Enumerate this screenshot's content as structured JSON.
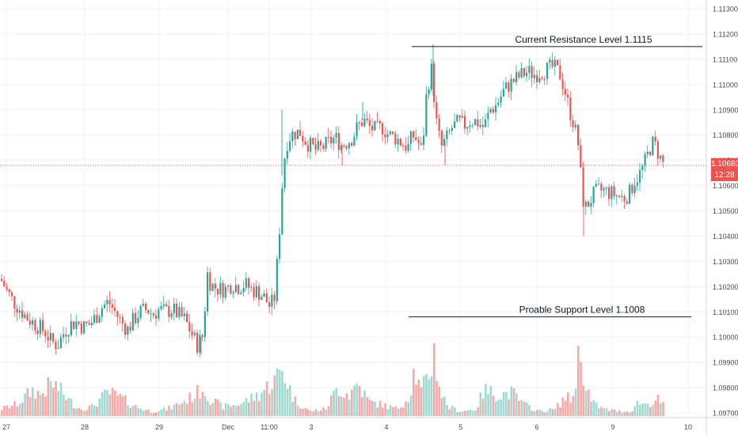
{
  "chart_data": {
    "type": "candlestick",
    "instrument_hint": "",
    "y_axis": {
      "ylim": [
        1.0966,
        1.1133
      ],
      "ticks": [
        "1.11300",
        "1.11200",
        "1.11100",
        "1.11000",
        "1.10900",
        "1.10800",
        "1.10700",
        "1.10600",
        "1.10500",
        "1.10400",
        "1.10300",
        "1.10200",
        "1.10100",
        "1.10000",
        "1.09900",
        "1.09800",
        "1.09700"
      ]
    },
    "x_axis": {
      "ticks": [
        "27",
        "28",
        "29",
        "Dec",
        "11:00",
        "3",
        "4",
        "5",
        "6",
        "9",
        "10"
      ]
    },
    "current_price": {
      "value": "1.10680",
      "time_left": "12:28"
    },
    "annotations": [
      {
        "label": "Current Resistance Level 1.1115",
        "level": 1.1115
      },
      {
        "label": "Proable Support Level 1.1008",
        "level": 1.1008
      }
    ],
    "price_path": [
      [
        0,
        1.1023
      ],
      [
        8,
        1.1018
      ],
      [
        16,
        1.1014
      ],
      [
        24,
        1.1011
      ],
      [
        32,
        1.1008
      ],
      [
        40,
        1.1006
      ],
      [
        48,
        1.1004
      ],
      [
        56,
        1.1002
      ],
      [
        64,
        1.0998
      ],
      [
        72,
        1.0997
      ],
      [
        80,
        1.1002
      ],
      [
        88,
        1.1005
      ],
      [
        96,
        1.1006
      ],
      [
        104,
        1.1004
      ],
      [
        112,
        1.1005
      ],
      [
        120,
        1.1008
      ],
      [
        128,
        1.1012
      ],
      [
        136,
        1.1014
      ],
      [
        144,
        1.101
      ],
      [
        152,
        1.1006
      ],
      [
        160,
        1.1003
      ],
      [
        168,
        1.1007
      ],
      [
        176,
        1.101
      ],
      [
        184,
        1.1011
      ],
      [
        192,
        1.1009
      ],
      [
        200,
        1.1011
      ],
      [
        208,
        1.101
      ],
      [
        216,
        1.1011
      ],
      [
        224,
        1.1009
      ],
      [
        232,
        1.1007
      ],
      [
        240,
        1.1002
      ],
      [
        248,
        1.0997
      ],
      [
        256,
        1.1001
      ],
      [
        260,
        1.1026
      ],
      [
        264,
        1.1022
      ],
      [
        268,
        1.102
      ],
      [
        276,
        1.1019
      ],
      [
        284,
        1.1019
      ],
      [
        292,
        1.1021
      ],
      [
        300,
        1.102
      ],
      [
        308,
        1.1021
      ],
      [
        316,
        1.1019
      ],
      [
        324,
        1.1018
      ],
      [
        332,
        1.1016
      ],
      [
        340,
        1.1012
      ],
      [
        346,
        1.1016
      ],
      [
        352,
        1.1043
      ],
      [
        356,
        1.1064
      ],
      [
        360,
        1.1076
      ],
      [
        366,
        1.108
      ],
      [
        372,
        1.1081
      ],
      [
        378,
        1.1081
      ],
      [
        384,
        1.1078
      ],
      [
        390,
        1.1076
      ],
      [
        398,
        1.1074
      ],
      [
        406,
        1.1075
      ],
      [
        414,
        1.1077
      ],
      [
        422,
        1.1079
      ],
      [
        430,
        1.1076
      ],
      [
        436,
        1.1077
      ],
      [
        444,
        1.1079
      ],
      [
        450,
        1.1083
      ],
      [
        458,
        1.1086
      ],
      [
        466,
        1.1083
      ],
      [
        474,
        1.1082
      ],
      [
        482,
        1.1083
      ],
      [
        490,
        1.108
      ],
      [
        498,
        1.1079
      ],
      [
        506,
        1.1077
      ],
      [
        514,
        1.1075
      ],
      [
        520,
        1.108
      ],
      [
        526,
        1.1078
      ],
      [
        532,
        1.1073
      ],
      [
        538,
        1.1098
      ],
      [
        544,
        1.1106
      ],
      [
        550,
        1.1085
      ],
      [
        556,
        1.1075
      ],
      [
        562,
        1.1078
      ],
      [
        570,
        1.1083
      ],
      [
        578,
        1.1085
      ],
      [
        586,
        1.1084
      ],
      [
        594,
        1.1086
      ],
      [
        602,
        1.1085
      ],
      [
        610,
        1.1083
      ],
      [
        618,
        1.109
      ],
      [
        626,
        1.1092
      ],
      [
        634,
        1.1097
      ],
      [
        642,
        1.11
      ],
      [
        650,
        1.1102
      ],
      [
        658,
        1.1104
      ],
      [
        666,
        1.1105
      ],
      [
        674,
        1.1104
      ],
      [
        682,
        1.1105
      ],
      [
        690,
        1.1106
      ],
      [
        698,
        1.1107
      ],
      [
        706,
        1.1104
      ],
      [
        712,
        1.1098
      ],
      [
        718,
        1.109
      ],
      [
        724,
        1.1084
      ],
      [
        730,
        1.1075
      ],
      [
        734,
        1.1056
      ],
      [
        738,
        1.1051
      ],
      [
        744,
        1.1054
      ],
      [
        750,
        1.1057
      ],
      [
        756,
        1.1058
      ],
      [
        762,
        1.1058
      ],
      [
        770,
        1.1057
      ],
      [
        778,
        1.1056
      ],
      [
        786,
        1.1055
      ],
      [
        794,
        1.1057
      ],
      [
        800,
        1.1062
      ],
      [
        806,
        1.1064
      ],
      [
        812,
        1.1068
      ],
      [
        818,
        1.1073
      ],
      [
        822,
        1.1077
      ],
      [
        826,
        1.1076
      ],
      [
        830,
        1.1073
      ],
      [
        834,
        1.107
      ],
      [
        838,
        1.1068
      ]
    ],
    "wick_extremes": [
      [
        547,
        1.1116
      ],
      [
        737,
        1.104
      ],
      [
        356,
        1.109
      ],
      [
        458,
        1.1093
      ],
      [
        432,
        1.1068
      ],
      [
        562,
        1.1068
      ],
      [
        254,
        1.0993
      ]
    ],
    "volume_profile": [
      [
        0,
        0.15
      ],
      [
        20,
        0.25
      ],
      [
        40,
        0.55
      ],
      [
        50,
        0.45
      ],
      [
        64,
        0.7
      ],
      [
        72,
        0.6
      ],
      [
        85,
        0.35
      ],
      [
        100,
        0.15
      ],
      [
        115,
        0.2
      ],
      [
        135,
        0.5
      ],
      [
        150,
        0.4
      ],
      [
        170,
        0.2
      ],
      [
        190,
        0.1
      ],
      [
        210,
        0.15
      ],
      [
        230,
        0.3
      ],
      [
        245,
        0.45
      ],
      [
        255,
        0.6
      ],
      [
        265,
        0.35
      ],
      [
        280,
        0.2
      ],
      [
        300,
        0.25
      ],
      [
        325,
        0.45
      ],
      [
        345,
        0.75
      ],
      [
        355,
        1.0
      ],
      [
        370,
        0.35
      ],
      [
        390,
        0.1
      ],
      [
        410,
        0.15
      ],
      [
        425,
        0.6
      ],
      [
        440,
        0.45
      ],
      [
        450,
        0.7
      ],
      [
        465,
        0.3
      ],
      [
        480,
        0.25
      ],
      [
        500,
        0.15
      ],
      [
        515,
        0.4
      ],
      [
        522,
        1.0
      ],
      [
        530,
        0.5
      ],
      [
        540,
        0.85
      ],
      [
        547,
        1.35
      ],
      [
        555,
        0.5
      ],
      [
        565,
        0.2
      ],
      [
        580,
        0.1
      ],
      [
        600,
        0.15
      ],
      [
        610,
        0.55
      ],
      [
        630,
        0.45
      ],
      [
        645,
        0.5
      ],
      [
        660,
        0.25
      ],
      [
        680,
        0.1
      ],
      [
        700,
        0.15
      ],
      [
        712,
        0.4
      ],
      [
        722,
        0.35
      ],
      [
        730,
        1.35
      ],
      [
        736,
        0.9
      ],
      [
        745,
        0.3
      ],
      [
        760,
        0.15
      ],
      [
        780,
        0.1
      ],
      [
        795,
        0.1
      ],
      [
        805,
        0.3
      ],
      [
        815,
        0.25
      ],
      [
        830,
        0.35
      ],
      [
        838,
        0.2
      ]
    ]
  }
}
